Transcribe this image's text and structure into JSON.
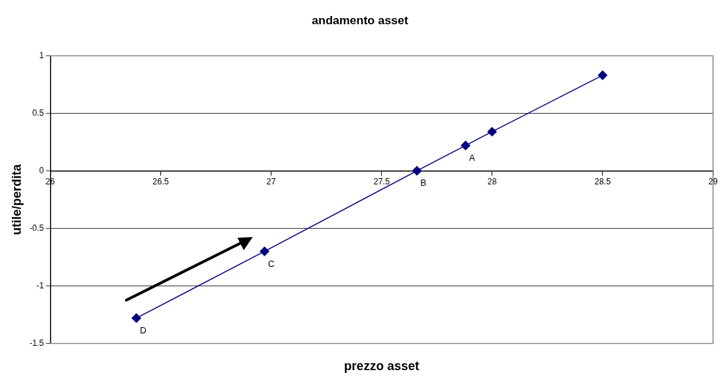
{
  "chart_data": {
    "type": "line",
    "title": "andamento asset",
    "xlabel": "prezzo asset",
    "ylabel": "utile/perdita",
    "x": [
      26.39,
      26.97,
      27.66,
      27.88,
      28.0,
      28.5
    ],
    "series": [
      {
        "color": "#000080",
        "values": [
          -1.28,
          -0.7,
          0,
          0.22,
          0.34,
          0.83
        ]
      }
    ],
    "xlim": [
      26,
      29
    ],
    "xticks": [
      26,
      26.5,
      27,
      27.5,
      28,
      28.5,
      29
    ],
    "ylim": [
      -1.5,
      1
    ],
    "yticks": [
      -1.5,
      -1,
      -0.5,
      0,
      0.5,
      1
    ],
    "grid": "y",
    "legend": false,
    "marker": "diamond",
    "line_style": "solid",
    "annotations": [
      {
        "text": "D",
        "x": 26.39,
        "y": -1.28
      },
      {
        "text": "C",
        "x": 26.97,
        "y": -0.7
      },
      {
        "text": "B",
        "x": 27.66,
        "y": 0
      },
      {
        "text": "A",
        "x": 27.88,
        "y": 0.22
      }
    ]
  }
}
